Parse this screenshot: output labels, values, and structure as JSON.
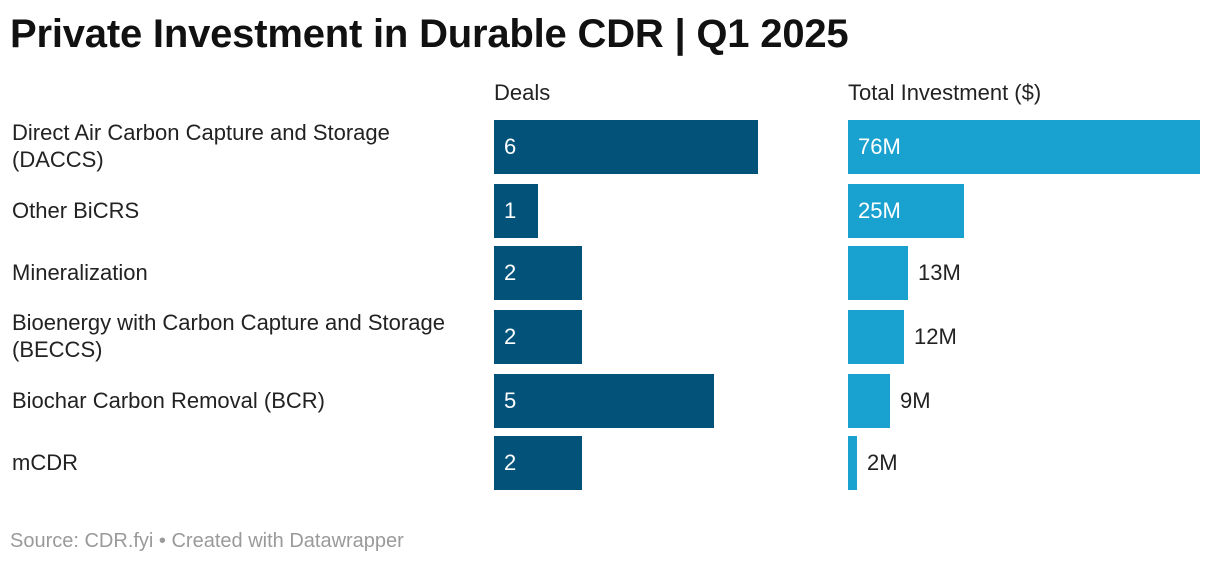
{
  "title": "Private Investment in Durable CDR | Q1 2025",
  "source": "Source: CDR.fyi • Created with Datawrapper",
  "colors": {
    "deals_bar": "#02527a",
    "investment_bar": "#19a1cf",
    "label_inside": "#ffffff",
    "label_outside": "#222222"
  },
  "chart_data": {
    "type": "bar",
    "orientation": "horizontal",
    "categories": [
      "Direct Air Carbon Capture and Storage (DACCS)",
      "Other BiCRS",
      "Mineralization",
      "Bioenergy with Carbon Capture and Storage (BECCS)",
      "Biochar Carbon Removal (BCR)",
      "mCDR"
    ],
    "series": [
      {
        "name": "Deals",
        "values": [
          6,
          1,
          2,
          2,
          5,
          2
        ],
        "labels": [
          "6",
          "1",
          "2",
          "2",
          "5",
          "2"
        ]
      },
      {
        "name": "Total Investment ($)",
        "values": [
          76,
          25,
          13,
          12,
          9,
          2
        ],
        "labels": [
          "76M",
          "25M",
          "13M",
          "12M",
          "9M",
          "2M"
        ]
      }
    ],
    "title": "Private Investment in Durable CDR | Q1 2025",
    "legend": "none"
  }
}
